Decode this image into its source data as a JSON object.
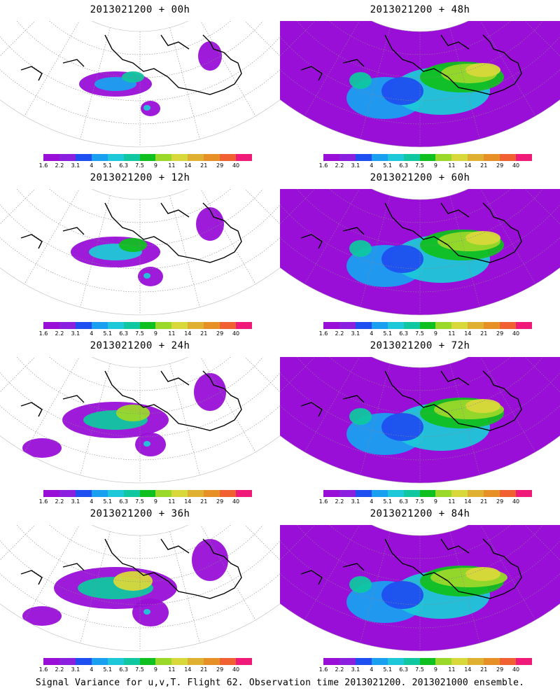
{
  "legend": {
    "colors": [
      "#9a0fd8",
      "#8a1fe0",
      "#1f4ff0",
      "#1aa0f0",
      "#1fc8d8",
      "#10c7a0",
      "#10c020",
      "#9ad82a",
      "#d8d83a",
      "#e0b030",
      "#e89028",
      "#f06030",
      "#f01a7a"
    ],
    "labels": [
      "1.6",
      "2.2",
      "3.1",
      "4",
      "5.1",
      "6.3",
      "7.5",
      "9",
      "11",
      "14",
      "21",
      "29",
      "40"
    ]
  },
  "panels": [
    {
      "title": "2013021200 + 00h",
      "level": 1
    },
    {
      "title": "2013021200 + 48h",
      "level": 5
    },
    {
      "title": "2013021200 + 12h",
      "level": 2
    },
    {
      "title": "2013021200 + 60h",
      "level": 6
    },
    {
      "title": "2013021200 + 24h",
      "level": 3
    },
    {
      "title": "2013021200 + 72h",
      "level": 7
    },
    {
      "title": "2013021200 + 36h",
      "level": 4
    },
    {
      "title": "2013021200 + 84h",
      "level": 8
    }
  ],
  "caption": "Signal Variance for u,v,T. Flight 62. Observation time 2013021200. 2013021000 ensemble."
}
